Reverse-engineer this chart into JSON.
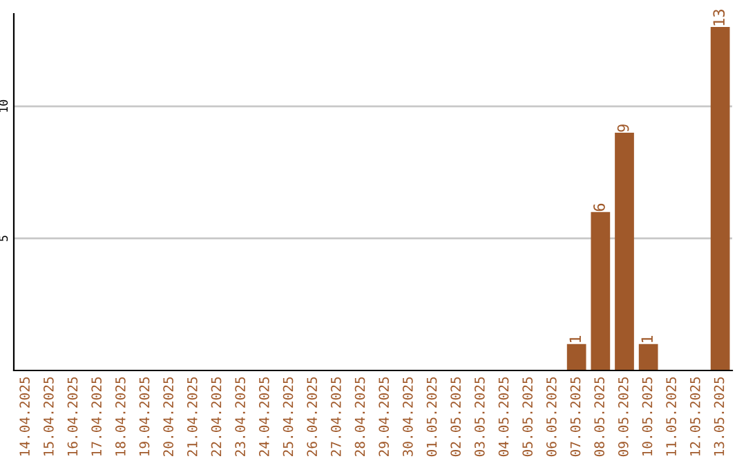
{
  "chart_data": {
    "type": "bar",
    "categories": [
      "14.04.2025",
      "15.04.2025",
      "16.04.2025",
      "17.04.2025",
      "18.04.2025",
      "19.04.2025",
      "20.04.2025",
      "21.04.2025",
      "22.04.2025",
      "23.04.2025",
      "24.04.2025",
      "25.04.2025",
      "26.04.2025",
      "27.04.2025",
      "28.04.2025",
      "29.04.2025",
      "30.04.2025",
      "01.05.2025",
      "02.05.2025",
      "03.05.2025",
      "04.05.2025",
      "05.05.2025",
      "06.05.2025",
      "07.05.2025",
      "08.05.2025",
      "09.05.2025",
      "10.05.2025",
      "11.05.2025",
      "12.05.2025",
      "13.05.2025"
    ],
    "values": [
      0,
      0,
      0,
      0,
      0,
      0,
      0,
      0,
      0,
      0,
      0,
      0,
      0,
      0,
      0,
      0,
      0,
      0,
      0,
      0,
      0,
      0,
      0,
      1,
      6,
      9,
      1,
      0,
      0,
      13
    ],
    "value_labels": [
      null,
      null,
      null,
      null,
      null,
      null,
      null,
      null,
      null,
      null,
      null,
      null,
      null,
      null,
      null,
      null,
      null,
      null,
      null,
      null,
      null,
      null,
      null,
      "1",
      "6",
      "9",
      "1",
      null,
      null,
      "13"
    ],
    "color": "#a0592a",
    "ylim": [
      0,
      13.5
    ],
    "yticks": [
      5,
      10
    ],
    "grid": "y",
    "legend": false
  }
}
